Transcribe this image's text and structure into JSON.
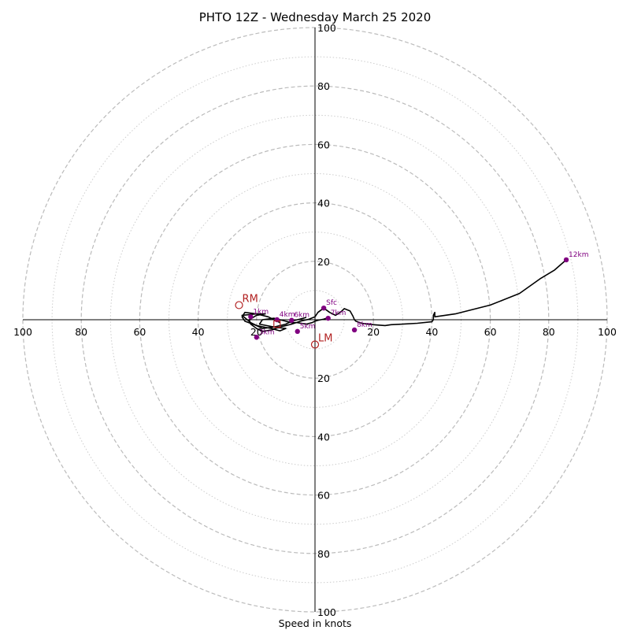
{
  "chart_data": {
    "type": "hodograph",
    "title": "PHTO 12Z - Wednesday March 25 2020",
    "xlabel": "Speed in knots",
    "max_speed": 100,
    "ring_step": 20,
    "ring_labels": [
      "20",
      "40",
      "60",
      "80",
      "100"
    ],
    "grid": true,
    "colors": {
      "trace": "#000000",
      "height_marker": "#800080",
      "storm_motion": "#b22222",
      "ring_major": "#bbbbbb",
      "ring_minor": "#cccccc",
      "axis": "#000000"
    },
    "trace": {
      "u": [
        3,
        5,
        7,
        9,
        10,
        12,
        13,
        13.5,
        14,
        16,
        18,
        20,
        24,
        26,
        30,
        35,
        40,
        40.5,
        40.5,
        41,
        41,
        48,
        60,
        70,
        77,
        82,
        86
      ],
      "v": [
        4,
        2.5,
        1.5,
        2.8,
        3.8,
        3,
        1.2,
        0,
        -0.5,
        -1.2,
        -1.5,
        -1.7,
        -2,
        -1.7,
        -1.5,
        -1.2,
        -0.7,
        0,
        1.5,
        2.5,
        1,
        2,
        5,
        9,
        14,
        17,
        20.5
      ]
    },
    "trace_low": {
      "u": [
        3,
        1,
        0,
        -2,
        -5,
        -8,
        -12,
        -15,
        -18,
        -20,
        -22,
        -22.5,
        -20,
        -17,
        -20,
        -25,
        -22,
        -20,
        -15,
        -12,
        -10,
        -14,
        -19,
        -18,
        -14,
        -12,
        -10,
        -8,
        -6,
        -3,
        -1,
        0,
        1,
        2,
        3,
        4
      ],
      "v": [
        4,
        2.5,
        1,
        0.2,
        -0.5,
        -1.5,
        -2.5,
        -3.5,
        -4,
        -3,
        -1.5,
        0,
        1.5,
        2,
        2,
        1.5,
        -1,
        -2,
        -3,
        -3.8,
        -3,
        -2.5,
        -1.5,
        0,
        0.5,
        0,
        -0.5,
        -1,
        -1,
        -1.5,
        -1,
        -0.5,
        -0.2,
        0,
        0.2,
        0.5
      ]
    },
    "trace_loop": {
      "u": [
        -12,
        -16,
        -20,
        -24,
        -25,
        -24,
        -20,
        -18,
        -14,
        -10,
        -8,
        -6,
        -4,
        -3
      ],
      "v": [
        -1,
        1,
        2,
        2.5,
        1,
        -0.5,
        -2,
        -3,
        -2.5,
        -1.5,
        -0.5,
        0,
        0.5,
        0.8
      ]
    },
    "height_markers": [
      {
        "label": "Sfc",
        "u": 3,
        "v": 4
      },
      {
        "label": "1km",
        "u": -22,
        "v": 1
      },
      {
        "label": "3km",
        "u": -20,
        "v": -6
      },
      {
        "label": "4km",
        "u": -13,
        "v": 0
      },
      {
        "label": "5km",
        "u": -6,
        "v": -4
      },
      {
        "label": "6km",
        "u": -8,
        "v": -0.2
      },
      {
        "label": "7km",
        "u": 4.5,
        "v": 0.5
      },
      {
        "label": "8km",
        "u": 13.5,
        "v": -3.5
      },
      {
        "label": "12km",
        "u": 86,
        "v": 20.5
      }
    ],
    "storm_motion": [
      {
        "label": "RM",
        "u": -26,
        "v": 5
      },
      {
        "label": "LM",
        "u": 0,
        "v": -8.5
      }
    ],
    "mean_wind": {
      "u": -13,
      "v": -1.5
    }
  }
}
